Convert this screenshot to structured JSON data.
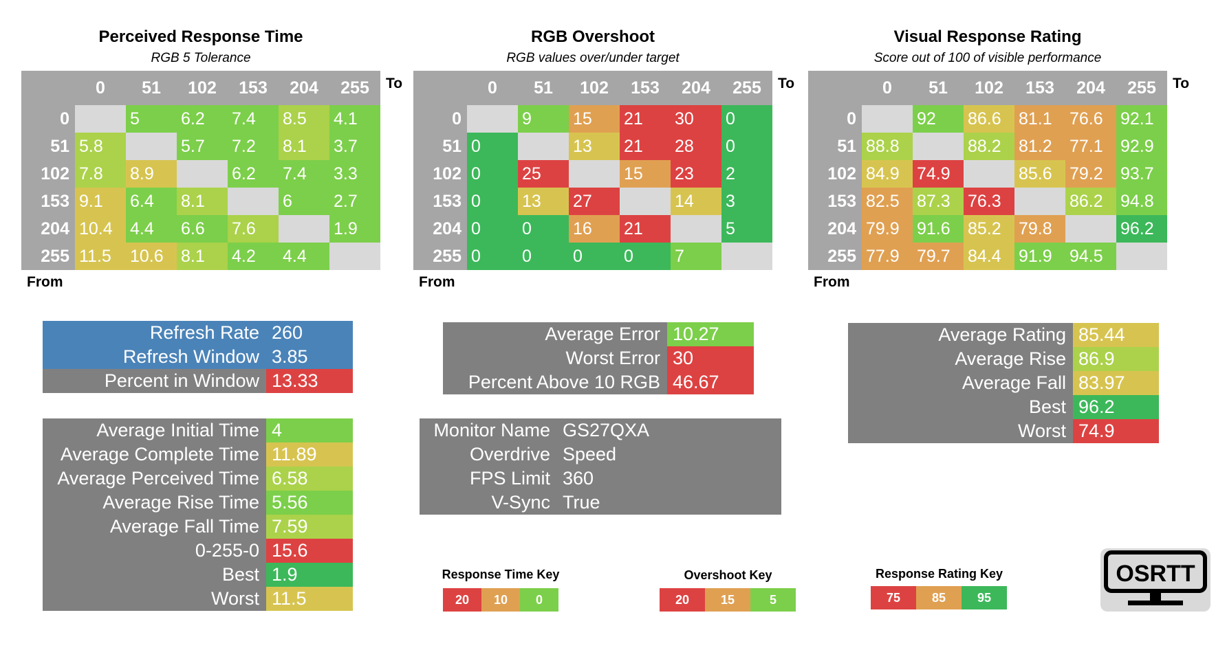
{
  "colors": {
    "grid_header": "#a6a6a6",
    "diag": "#d9d9d9",
    "stat_label_bg": "#808080",
    "blue": "#4a83b8",
    "red": "#dd4242",
    "orange": "#e0a052",
    "yellow": "#d7c450",
    "lime": "#abd24a",
    "green": "#7ccf4a",
    "dkgreen": "#3cb85a"
  },
  "chart_data": [
    {
      "type": "heatmap",
      "title": "Perceived Response Time",
      "subtitle": "RGB 5 Tolerance",
      "xlabel": "To",
      "ylabel": "From",
      "x": [
        "0",
        "51",
        "102",
        "153",
        "204",
        "255"
      ],
      "y": [
        "0",
        "51",
        "102",
        "153",
        "204",
        "255"
      ],
      "values": [
        [
          null,
          5,
          6.2,
          7.4,
          8.5,
          4.1
        ],
        [
          5.8,
          null,
          5.7,
          7.2,
          8.1,
          3.7
        ],
        [
          7.8,
          8.9,
          null,
          6.2,
          7.4,
          3.3
        ],
        [
          9.1,
          6.4,
          8.1,
          null,
          6,
          2.7
        ],
        [
          10.4,
          4.4,
          6.6,
          7.6,
          null,
          1.9
        ],
        [
          11.5,
          10.6,
          8.1,
          4.2,
          4.4,
          null
        ]
      ],
      "cell_colors": [
        [
          "diag",
          "green",
          "green",
          "green",
          "lime",
          "green"
        ],
        [
          "lime",
          "diag",
          "green",
          "green",
          "lime",
          "green"
        ],
        [
          "lime",
          "yellow",
          "diag",
          "green",
          "green",
          "green"
        ],
        [
          "yellow",
          "green",
          "lime",
          "diag",
          "green",
          "green"
        ],
        [
          "yellow",
          "green",
          "green",
          "lime",
          "diag",
          "green"
        ],
        [
          "yellow",
          "yellow",
          "lime",
          "green",
          "green",
          "diag"
        ]
      ]
    },
    {
      "type": "heatmap",
      "title": "RGB Overshoot",
      "subtitle": "RGB values over/under target",
      "xlabel": "To",
      "ylabel": "From",
      "x": [
        "0",
        "51",
        "102",
        "153",
        "204",
        "255"
      ],
      "y": [
        "0",
        "51",
        "102",
        "153",
        "204",
        "255"
      ],
      "values": [
        [
          null,
          9,
          15,
          21,
          30,
          0
        ],
        [
          0,
          null,
          13,
          21,
          28,
          0
        ],
        [
          0,
          25,
          null,
          15,
          23,
          2
        ],
        [
          0,
          13,
          27,
          null,
          14,
          3
        ],
        [
          0,
          0,
          16,
          21,
          null,
          5
        ],
        [
          0,
          0,
          0,
          0,
          7,
          null
        ]
      ],
      "cell_colors": [
        [
          "diag",
          "green",
          "orange",
          "red",
          "red",
          "dkgreen"
        ],
        [
          "dkgreen",
          "diag",
          "yellow",
          "red",
          "red",
          "dkgreen"
        ],
        [
          "dkgreen",
          "red",
          "diag",
          "orange",
          "red",
          "dkgreen"
        ],
        [
          "dkgreen",
          "yellow",
          "red",
          "diag",
          "yellow",
          "dkgreen"
        ],
        [
          "dkgreen",
          "dkgreen",
          "orange",
          "red",
          "diag",
          "dkgreen"
        ],
        [
          "dkgreen",
          "dkgreen",
          "dkgreen",
          "dkgreen",
          "green",
          "diag"
        ]
      ]
    },
    {
      "type": "heatmap",
      "title": "Visual Response Rating",
      "subtitle": "Score out of 100 of visible performance",
      "xlabel": "To",
      "ylabel": "From",
      "x": [
        "0",
        "51",
        "102",
        "153",
        "204",
        "255"
      ],
      "y": [
        "0",
        "51",
        "102",
        "153",
        "204",
        "255"
      ],
      "values": [
        [
          null,
          92,
          86.6,
          81.1,
          76.6,
          92.1
        ],
        [
          88.8,
          null,
          88.2,
          81.2,
          77.1,
          92.9
        ],
        [
          84.9,
          74.9,
          null,
          85.6,
          79.2,
          93.7
        ],
        [
          82.5,
          87.3,
          76.3,
          null,
          86.2,
          94.8
        ],
        [
          79.9,
          91.6,
          85.2,
          79.8,
          null,
          96.2
        ],
        [
          77.9,
          79.7,
          84.4,
          91.9,
          94.5,
          null
        ]
      ],
      "cell_colors": [
        [
          "diag",
          "green",
          "yellow",
          "orange",
          "orange",
          "green"
        ],
        [
          "lime",
          "diag",
          "lime",
          "orange",
          "orange",
          "green"
        ],
        [
          "yellow",
          "red",
          "diag",
          "yellow",
          "orange",
          "green"
        ],
        [
          "orange",
          "lime",
          "red",
          "diag",
          "lime",
          "green"
        ],
        [
          "orange",
          "green",
          "yellow",
          "orange",
          "diag",
          "dkgreen"
        ],
        [
          "orange",
          "orange",
          "yellow",
          "green",
          "green",
          "diag"
        ]
      ]
    }
  ],
  "response_stats_a": [
    {
      "label": "Refresh Rate",
      "value": "260",
      "label_color": "blue",
      "value_color": "blue"
    },
    {
      "label": "Refresh Window",
      "value": "3.85",
      "label_color": "blue",
      "value_color": "blue"
    },
    {
      "label": "Percent in Window",
      "value": "13.33",
      "label_color": "gray",
      "value_color": "red"
    }
  ],
  "response_stats_b": [
    {
      "label": "Average Initial Time",
      "value": "4",
      "value_color": "green"
    },
    {
      "label": "Average Complete Time",
      "value": "11.89",
      "value_color": "yellow"
    },
    {
      "label": "Average Perceived Time",
      "value": "6.58",
      "value_color": "lime"
    },
    {
      "label": "Average Rise Time",
      "value": "5.56",
      "value_color": "green"
    },
    {
      "label": "Average Fall Time",
      "value": "7.59",
      "value_color": "lime"
    },
    {
      "label": "0-255-0",
      "value": "15.6",
      "value_color": "red"
    },
    {
      "label": "Best",
      "value": "1.9",
      "value_color": "dkgreen"
    },
    {
      "label": "Worst",
      "value": "11.5",
      "value_color": "yellow"
    }
  ],
  "overshoot_stats": [
    {
      "label": "Average Error",
      "value": "10.27",
      "value_color": "green"
    },
    {
      "label": "Worst Error",
      "value": "30",
      "value_color": "red"
    },
    {
      "label": "Percent Above 10 RGB",
      "value": "46.67",
      "value_color": "red"
    }
  ],
  "monitor_info": [
    {
      "label": "Monitor Name",
      "value": "GS27QXA"
    },
    {
      "label": "Overdrive",
      "value": "Speed"
    },
    {
      "label": "FPS Limit",
      "value": "360"
    },
    {
      "label": "V-Sync",
      "value": "True"
    }
  ],
  "rating_stats": [
    {
      "label": "Average Rating",
      "value": "85.44",
      "value_color": "yellow"
    },
    {
      "label": "Average Rise",
      "value": "86.9",
      "value_color": "lime"
    },
    {
      "label": "Average Fall",
      "value": "83.97",
      "value_color": "yellow"
    },
    {
      "label": "Best",
      "value": "96.2",
      "value_color": "dkgreen"
    },
    {
      "label": "Worst",
      "value": "74.9",
      "value_color": "red"
    }
  ],
  "keys": [
    {
      "title": "Response Time Key",
      "values": [
        "20",
        "10",
        "0"
      ]
    },
    {
      "title": "Overshoot Key",
      "values": [
        "20",
        "15",
        "5"
      ]
    },
    {
      "title": "Response Rating Key",
      "values": [
        "75",
        "85",
        "95"
      ]
    }
  ],
  "logo_text": "OSRTT"
}
